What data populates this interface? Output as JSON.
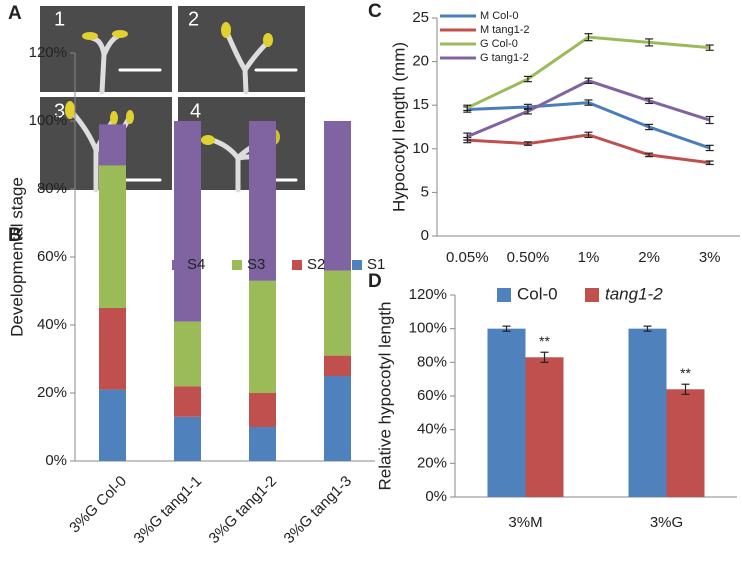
{
  "figure": {
    "panel_labels": [
      "A",
      "B",
      "C",
      "D"
    ],
    "photo_labels": [
      "1",
      "2",
      "3",
      "4"
    ]
  },
  "chart_data": [
    {
      "type": "stacked_bar",
      "ylabel": "Developmental stage",
      "categories": [
        "3%G Col-0",
        "3%G tang1-1",
        "3%G tang1-2",
        "3%G tang1-3"
      ],
      "series": [
        {
          "name": "S1",
          "color": "#4f81bd",
          "values": [
            21,
            13,
            10,
            25
          ]
        },
        {
          "name": "S2",
          "color": "#c0504d",
          "values": [
            24,
            9,
            10,
            6
          ]
        },
        {
          "name": "S3",
          "color": "#9bbb59",
          "values": [
            42,
            19,
            33,
            25
          ]
        },
        {
          "name": "S4",
          "color": "#8064a2",
          "values": [
            12,
            59,
            47,
            44
          ]
        }
      ],
      "ylim": [
        0,
        120
      ],
      "yticks": [
        {
          "value": 0,
          "label": "0%"
        },
        {
          "value": 20,
          "label": "20%"
        },
        {
          "value": 40,
          "label": "40%"
        },
        {
          "value": 60,
          "label": "60%"
        },
        {
          "value": 80,
          "label": "80%"
        },
        {
          "value": 100,
          "label": "100%"
        },
        {
          "value": 120,
          "label": "120%"
        }
      ],
      "legend": "top"
    },
    {
      "type": "line",
      "ylabel": "Hypocotyl length (mm)",
      "categories": [
        "0.05%",
        "0.50%",
        "1%",
        "2%",
        "3%"
      ],
      "series": [
        {
          "name": "M Col-0",
          "color": "#4a7ebb",
          "values": [
            14.5,
            14.8,
            15.3,
            12.5,
            10.1
          ],
          "errors": [
            0.3,
            0.3,
            0.3,
            0.3,
            0.3
          ]
        },
        {
          "name": "M tang1-2",
          "color": "#c0504d",
          "values": [
            11.0,
            10.6,
            11.6,
            9.3,
            8.4
          ],
          "errors": [
            0.3,
            0.2,
            0.3,
            0.2,
            0.2
          ]
        },
        {
          "name": "G Col-0",
          "color": "#9bbb59",
          "values": [
            14.7,
            18.0,
            22.8,
            22.2,
            21.6
          ],
          "errors": [
            0.3,
            0.3,
            0.4,
            0.4,
            0.3
          ]
        },
        {
          "name": "G tang1-2",
          "color": "#8064a2",
          "values": [
            11.4,
            14.3,
            17.8,
            15.5,
            13.3
          ],
          "errors": [
            0.4,
            0.3,
            0.3,
            0.3,
            0.4
          ]
        }
      ],
      "ylim": [
        0,
        25
      ],
      "yticks": [
        0,
        5,
        10,
        15,
        20,
        25
      ],
      "legend": "top-left"
    },
    {
      "type": "bar",
      "ylabel": "Relative hypocotyl length",
      "categories": [
        "3%M",
        "3%G"
      ],
      "series": [
        {
          "name": "Col-0",
          "color": "#4f81bd",
          "values": [
            100,
            100
          ],
          "errors": [
            1.5,
            1.5
          ]
        },
        {
          "name": "tang1-2",
          "color": "#c0504d",
          "values": [
            83,
            64
          ],
          "errors": [
            3,
            3
          ],
          "significance": [
            "**",
            "**"
          ]
        }
      ],
      "ylim": [
        0,
        120
      ],
      "yticks": [
        {
          "value": 0,
          "label": "0%"
        },
        {
          "value": 20,
          "label": "20%"
        },
        {
          "value": 40,
          "label": "40%"
        },
        {
          "value": 60,
          "label": "60%"
        },
        {
          "value": 80,
          "label": "80%"
        },
        {
          "value": 100,
          "label": "100%"
        },
        {
          "value": 120,
          "label": "120%"
        }
      ],
      "legend": "top"
    }
  ]
}
